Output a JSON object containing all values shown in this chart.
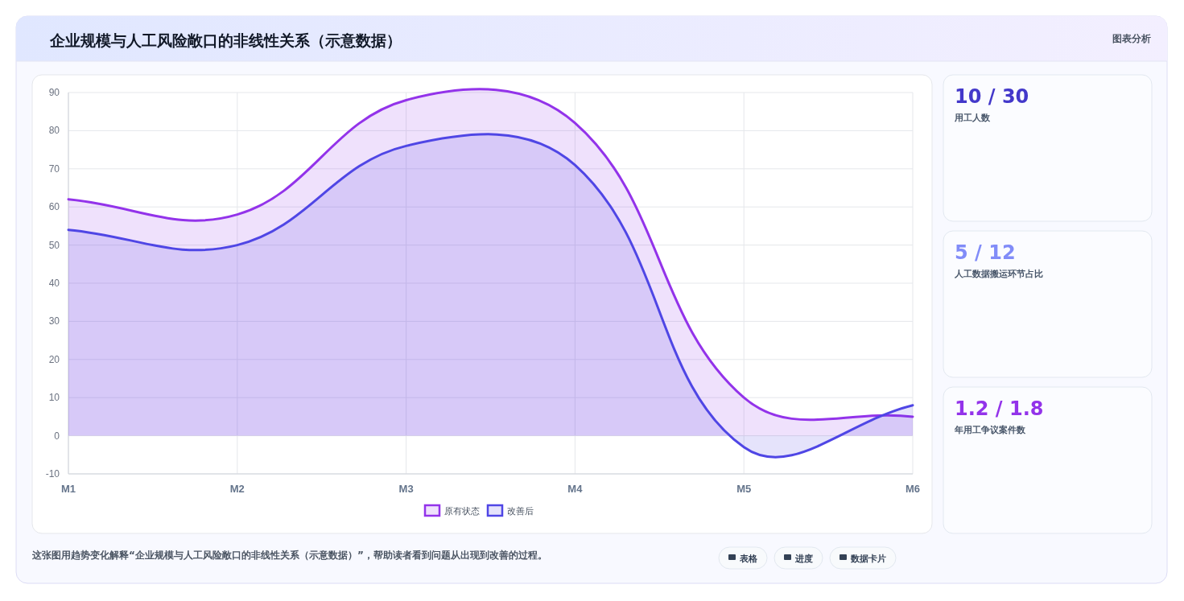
{
  "chart_data": [
    {
      "type": "area",
      "title": "企业规模与人工风险敞口的非线性关系（示意数据）",
      "categories": [
        "M1",
        "M2",
        "M3",
        "M4",
        "M5",
        "M6"
      ],
      "series": [
        {
          "name": "原有状态",
          "color": "#9333ea",
          "values": [
            62,
            58,
            88,
            82,
            10,
            5
          ]
        },
        {
          "name": "改善后",
          "color": "#4f46e5",
          "values": [
            54,
            50,
            76,
            71,
            -3,
            8
          ]
        }
      ],
      "ylim": [
        -10,
        90
      ],
      "yticks": [
        -10,
        0,
        10,
        20,
        30,
        40,
        50,
        60,
        70,
        80,
        90
      ],
      "grid": true,
      "legend": "bottom",
      "marker": "none",
      "line_style": "solid",
      "annotations": [
        "图表分析",
        "这张图用趋势变化解释“企业规模与人工风险敞口的非线性关系（示意数据）”，帮助读者看到问题从出现到改善的过程。",
        "表格",
        "进度",
        "数据卡片"
      ]
    },
    {
      "type": "other",
      "annotations": [
        "10 / 30",
        "用工人数",
        "5 / 12",
        "人工数据搬运环节占比",
        "1.2 / 1.8",
        "年用工争议案件数"
      ]
    }
  ]
}
